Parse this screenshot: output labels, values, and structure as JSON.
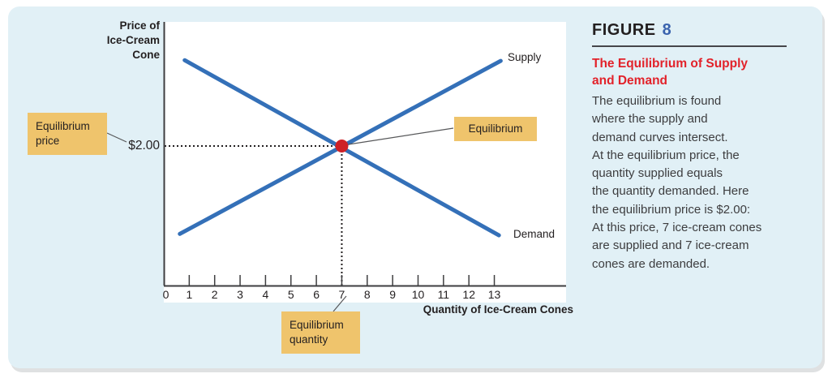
{
  "figure_panel": {
    "label": "FIGURE",
    "number": "8",
    "heading": "The Equilibrium of Supply\nand Demand",
    "body": "The equilibrium is found\nwhere the supply and\ndemand curves intersect.\nAt the equilibrium price, the\nquantity supplied equals\nthe quantity demanded. Here\nthe equilibrium price is $2.00:\nAt this price, 7 ice-cream cones\nare supplied and 7 ice-cream\ncones are demanded."
  },
  "chart_data": {
    "type": "line",
    "title": "",
    "xlabel": "Quantity of Ice-Cream Cones",
    "ylabel": "Price of\nIce-Cream\nCone",
    "xlim": [
      0,
      13
    ],
    "ylim": [
      0,
      3.75
    ],
    "grid": false,
    "legend": "inline-labels",
    "x_ticks": [
      0,
      1,
      2,
      3,
      4,
      5,
      6,
      7,
      8,
      9,
      10,
      11,
      12,
      13
    ],
    "y_tick_label": "$2.00",
    "y_tick_value": 2.0,
    "series": [
      {
        "name": "Supply",
        "points": [
          {
            "q": 0.63,
            "p": 0.74
          },
          {
            "q": 13.25,
            "p": 3.22
          }
        ]
      },
      {
        "name": "Demand",
        "points": [
          {
            "q": 0.82,
            "p": 3.23
          },
          {
            "q": 13.18,
            "p": 0.72
          }
        ]
      }
    ],
    "equilibrium": {
      "q": 7,
      "p": 2.0
    },
    "colors": {
      "curve": "#3470b8",
      "equilibrium_point": "#ce2127",
      "callout_box": "#efc46c",
      "heading_red": "#e2222a",
      "figure_number_blue": "#3a63ae",
      "card_background": "#e1f0f6"
    }
  },
  "callouts": {
    "price": "Equilibrium price",
    "point": "Equilibrium",
    "quantity": "Equilibrium quantity"
  }
}
